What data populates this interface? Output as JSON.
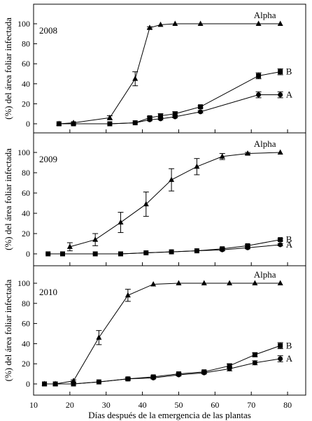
{
  "chart_data": {
    "type": "line",
    "xlabel": "Días después de la emergencia de las plantas",
    "ylabel": "(%) del área foliar infectada",
    "xlim": [
      10,
      85
    ],
    "xticks": [
      10,
      20,
      30,
      40,
      50,
      60,
      70,
      80
    ],
    "ylim": [
      -8,
      110
    ],
    "yticks": [
      0,
      20,
      40,
      60,
      80,
      100
    ],
    "panels": [
      {
        "title": "2008",
        "series": [
          {
            "name": "Alpha",
            "marker": "triangle",
            "x": [
              17,
              21,
              31,
              38,
              42,
              45,
              49,
              56,
              72,
              78
            ],
            "y": [
              0,
              1,
              6,
              45,
              96,
              99,
              100,
              100,
              100,
              100
            ],
            "err": [
              0,
              0,
              2,
              7,
              1,
              0,
              0,
              0,
              0,
              0
            ]
          },
          {
            "name": "B",
            "marker": "square",
            "x": [
              17,
              21,
              31,
              38,
              42,
              45,
              49,
              56,
              72,
              78
            ],
            "y": [
              0,
              0,
              0,
              1,
              6,
              8,
              10,
              17,
              48,
              52
            ],
            "err": [
              0,
              0,
              0,
              0,
              1,
              2,
              2,
              1,
              3,
              3
            ]
          },
          {
            "name": "A",
            "marker": "circle",
            "x": [
              17,
              21,
              31,
              38,
              42,
              45,
              49,
              56,
              72,
              78
            ],
            "y": [
              0,
              0,
              0,
              1,
              4,
              5,
              7,
              12,
              29,
              29
            ],
            "err": [
              0,
              0,
              0,
              0,
              1,
              1,
              1,
              1,
              3,
              3
            ]
          }
        ]
      },
      {
        "title": "2009",
        "series": [
          {
            "name": "Alpha",
            "marker": "triangle",
            "x": [
              20,
              27,
              34,
              41,
              48,
              55,
              62,
              69,
              78
            ],
            "y": [
              7,
              14,
              31,
              49,
              73,
              86,
              96,
              99,
              100
            ],
            "err": [
              4,
              6,
              10,
              12,
              11,
              8,
              3,
              1,
              0
            ]
          },
          {
            "name": "B",
            "marker": "square",
            "x": [
              14,
              18,
              27,
              34,
              41,
              48,
              55,
              62,
              69,
              78
            ],
            "y": [
              0,
              0,
              0,
              0,
              1,
              2,
              3,
              5,
              8,
              14
            ],
            "err": [
              0,
              0,
              0,
              0,
              0,
              0,
              0,
              1,
              1,
              1
            ]
          },
          {
            "name": "A",
            "marker": "circle",
            "x": [
              14,
              18,
              27,
              34,
              41,
              48,
              55,
              62,
              69,
              78
            ],
            "y": [
              0,
              0,
              0,
              0,
              1,
              2,
              3,
              4,
              6,
              9
            ],
            "err": [
              0,
              0,
              0,
              0,
              0,
              0,
              0,
              1,
              1,
              1
            ]
          }
        ]
      },
      {
        "title": "2010",
        "series": [
          {
            "name": "Alpha",
            "marker": "triangle",
            "x": [
              13,
              16,
              21,
              28,
              36,
              43,
              50,
              57,
              64,
              71,
              78
            ],
            "y": [
              0,
              0,
              3,
              46,
              88,
              99,
              100,
              100,
              100,
              100,
              100
            ],
            "err": [
              0,
              0,
              1,
              7,
              6,
              0,
              0,
              0,
              0,
              0,
              0
            ]
          },
          {
            "name": "B",
            "marker": "square",
            "x": [
              13,
              16,
              21,
              28,
              36,
              43,
              50,
              57,
              64,
              71,
              78
            ],
            "y": [
              0,
              0,
              0,
              2,
              5,
              7,
              10,
              12,
              18,
              29,
              38
            ],
            "err": [
              0,
              0,
              0,
              0,
              1,
              1,
              1,
              1,
              2,
              2,
              3
            ]
          },
          {
            "name": "A",
            "marker": "circle",
            "x": [
              13,
              16,
              21,
              28,
              36,
              43,
              50,
              57,
              64,
              71,
              78
            ],
            "y": [
              0,
              0,
              0,
              2,
              5,
              6,
              9,
              11,
              15,
              21,
              25
            ],
            "err": [
              0,
              0,
              0,
              0,
              1,
              1,
              1,
              1,
              2,
              2,
              3
            ]
          }
        ]
      }
    ]
  }
}
